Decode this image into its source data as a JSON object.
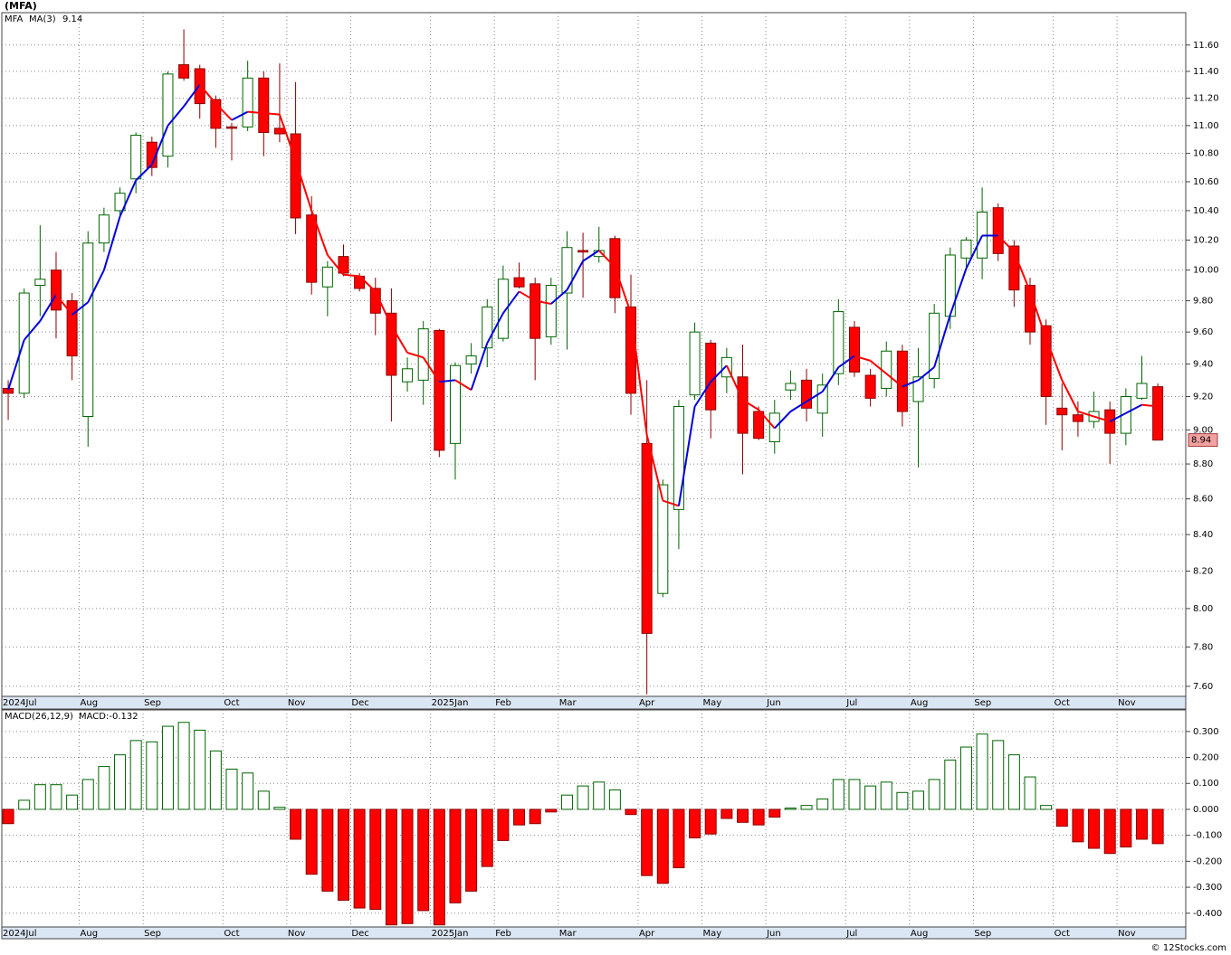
{
  "chart_data": [
    {
      "type": "candlestick",
      "title": "(MFA)",
      "symbol": "MFA",
      "symbol_color": "#008000",
      "up_color": "#006400",
      "down_color": "#ff0000",
      "log_scale": true,
      "grid": true,
      "open": [
        9.25,
        9.22,
        9.9,
        10.0,
        9.8,
        9.08,
        10.18,
        10.4,
        10.62,
        10.88,
        10.78,
        11.45,
        11.42,
        11.19,
        10.99,
        10.99,
        11.35,
        10.98,
        10.94,
        10.37,
        9.89,
        10.09,
        9.96,
        9.88,
        9.72,
        9.29,
        9.3,
        9.61,
        8.92,
        9.4,
        9.5,
        9.56,
        9.95,
        9.91,
        9.57,
        9.85,
        10.13,
        10.09,
        10.21,
        9.76,
        8.92,
        8.08,
        8.54,
        9.21,
        9.53,
        9.32,
        9.32,
        9.11,
        8.93,
        9.24,
        9.3,
        9.1,
        9.34,
        9.63,
        9.33,
        9.25,
        9.48,
        9.17,
        9.31,
        9.7,
        10.08,
        10.08,
        10.42,
        10.16,
        9.9,
        9.64,
        9.13,
        9.09,
        9.05,
        9.12,
        8.98,
        9.19,
        9.26
      ],
      "high": [
        9.3,
        9.88,
        10.3,
        10.12,
        9.85,
        10.26,
        10.42,
        10.56,
        10.95,
        10.92,
        11.4,
        11.72,
        11.45,
        11.22,
        11.02,
        11.48,
        11.4,
        11.46,
        11.32,
        10.5,
        10.06,
        10.17,
        9.98,
        9.95,
        9.88,
        9.44,
        9.67,
        9.62,
        9.41,
        9.53,
        9.81,
        10.03,
        10.05,
        9.95,
        9.95,
        10.26,
        10.25,
        10.29,
        10.23,
        9.97,
        9.3,
        8.71,
        9.18,
        9.66,
        9.55,
        9.5,
        9.52,
        9.14,
        9.18,
        9.36,
        9.37,
        9.34,
        9.81,
        9.67,
        9.37,
        9.54,
        9.52,
        9.5,
        9.78,
        10.15,
        10.22,
        10.56,
        10.45,
        10.2,
        9.95,
        9.68,
        9.28,
        9.17,
        9.23,
        9.17,
        9.25,
        9.45,
        9.28
      ],
      "low": [
        9.06,
        9.19,
        9.7,
        9.56,
        9.3,
        8.9,
        10.12,
        10.35,
        10.52,
        10.64,
        10.7,
        11.33,
        11.05,
        10.84,
        10.75,
        10.96,
        10.78,
        10.88,
        10.24,
        9.84,
        9.7,
        9.96,
        9.86,
        9.58,
        9.05,
        9.23,
        9.15,
        8.84,
        8.71,
        9.34,
        9.38,
        9.54,
        9.88,
        9.3,
        9.52,
        9.49,
        9.82,
        10.05,
        9.72,
        9.09,
        7.56,
        8.06,
        8.32,
        9.18,
        8.95,
        9.22,
        8.74,
        8.94,
        8.86,
        9.18,
        9.05,
        8.96,
        9.27,
        9.32,
        9.14,
        9.2,
        9.02,
        8.78,
        9.25,
        9.62,
        10.0,
        9.94,
        10.06,
        9.76,
        9.52,
        9.03,
        8.88,
        8.96,
        9.01,
        8.8,
        8.91,
        9.18,
        8.94
      ],
      "close": [
        9.22,
        9.85,
        9.94,
        9.74,
        9.45,
        10.18,
        10.37,
        10.52,
        10.93,
        10.7,
        11.38,
        11.35,
        11.16,
        10.98,
        10.98,
        11.35,
        10.95,
        10.94,
        10.35,
        9.92,
        10.02,
        9.98,
        9.88,
        9.72,
        9.33,
        9.37,
        9.62,
        8.88,
        9.39,
        9.45,
        9.76,
        9.94,
        9.89,
        9.56,
        9.9,
        10.15,
        10.12,
        10.13,
        9.82,
        9.22,
        7.87,
        8.68,
        9.14,
        9.6,
        9.12,
        9.44,
        8.98,
        8.95,
        9.1,
        9.28,
        9.13,
        9.27,
        9.73,
        9.35,
        9.19,
        9.48,
        9.11,
        9.32,
        9.72,
        10.1,
        10.2,
        10.39,
        10.11,
        9.87,
        9.6,
        9.2,
        9.09,
        9.05,
        9.11,
        8.98,
        9.2,
        9.28,
        8.94
      ],
      "ma": {
        "name": "MA(3)",
        "up_color": "#0000dd",
        "down_color": "#ff0000",
        "values": [
          9.24,
          9.55,
          9.67,
          9.84,
          9.71,
          9.79,
          10.0,
          10.36,
          10.61,
          10.72,
          11.0,
          11.14,
          11.3,
          11.16,
          11.04,
          11.1,
          11.09,
          11.08,
          10.75,
          10.4,
          10.1,
          9.97,
          9.96,
          9.86,
          9.64,
          9.47,
          9.44,
          9.29,
          9.3,
          9.24,
          9.53,
          9.72,
          9.86,
          9.8,
          9.78,
          9.87,
          10.06,
          10.13,
          10.02,
          9.72,
          8.97,
          8.59,
          8.56,
          9.14,
          9.29,
          9.39,
          9.18,
          9.12,
          9.01,
          9.11,
          9.17,
          9.23,
          9.38,
          9.45,
          9.42,
          9.34,
          9.26,
          9.3,
          9.38,
          9.71,
          10.01,
          10.23,
          10.23,
          10.12,
          9.86,
          9.56,
          9.3,
          9.11,
          9.08,
          9.05,
          9.1,
          9.15,
          9.14
        ]
      },
      "ylim": [
        7.55,
        11.85
      ],
      "yticks": [
        {
          "value": 7.6,
          "label": "7.60"
        },
        {
          "value": 7.8,
          "label": "7.80"
        },
        {
          "value": 8.0,
          "label": "8.00"
        },
        {
          "value": 8.2,
          "label": "8.20"
        },
        {
          "value": 8.4,
          "label": "8.40"
        },
        {
          "value": 8.6,
          "label": "8.60"
        },
        {
          "value": 8.8,
          "label": "8.80"
        },
        {
          "value": 9.0,
          "label": "9.00"
        },
        {
          "value": 9.2,
          "label": "9.20"
        },
        {
          "value": 9.4,
          "label": "9.40"
        },
        {
          "value": 9.6,
          "label": "9.60"
        },
        {
          "value": 9.8,
          "label": "9.80"
        },
        {
          "value": 10.0,
          "label": "10.00"
        },
        {
          "value": 10.2,
          "label": "10.20"
        },
        {
          "value": 10.4,
          "label": "10.40"
        },
        {
          "value": 10.6,
          "label": "10.60"
        },
        {
          "value": 10.8,
          "label": "10.80"
        },
        {
          "value": 11.0,
          "label": "11.00"
        },
        {
          "value": 11.2,
          "label": "11.20"
        },
        {
          "value": 11.4,
          "label": "11.40"
        },
        {
          "value": 11.6,
          "label": "11.60"
        }
      ],
      "xlim": [
        -0.4,
        73.75
      ],
      "xticks": [
        {
          "value": -0.4,
          "label": "2024Jul"
        },
        {
          "value": 4.45,
          "label": "Aug"
        },
        {
          "value": 8.45,
          "label": "Sep"
        },
        {
          "value": 13.45,
          "label": "Oct"
        },
        {
          "value": 17.45,
          "label": "Nov"
        },
        {
          "value": 21.45,
          "label": "Dec"
        },
        {
          "value": 26.45,
          "label": "2025Jan"
        },
        {
          "value": 30.45,
          "label": "Feb"
        },
        {
          "value": 34.45,
          "label": "Mar"
        },
        {
          "value": 39.45,
          "label": "Apr"
        },
        {
          "value": 43.45,
          "label": "May"
        },
        {
          "value": 47.45,
          "label": "Jun"
        },
        {
          "value": 52.45,
          "label": "Jul"
        },
        {
          "value": 56.45,
          "label": "Aug"
        },
        {
          "value": 60.45,
          "label": "Sep"
        },
        {
          "value": 65.45,
          "label": "Oct"
        },
        {
          "value": 69.45,
          "label": "Nov"
        }
      ]
    },
    {
      "type": "histogram_bar",
      "title": "MACD(26,12,9)",
      "value_prefix": "MACD:",
      "up_color": "#006400",
      "down_color": "#ff0000",
      "grid": true,
      "values": [
        -0.055,
        0.035,
        0.095,
        0.095,
        0.055,
        0.115,
        0.165,
        0.21,
        0.265,
        0.26,
        0.32,
        0.335,
        0.305,
        0.225,
        0.155,
        0.14,
        0.07,
        0.008,
        -0.115,
        -0.25,
        -0.315,
        -0.35,
        -0.38,
        -0.385,
        -0.445,
        -0.44,
        -0.39,
        -0.445,
        -0.36,
        -0.315,
        -0.22,
        -0.12,
        -0.06,
        -0.055,
        -0.01,
        0.055,
        0.09,
        0.105,
        0.075,
        -0.02,
        -0.255,
        -0.285,
        -0.225,
        -0.11,
        -0.095,
        -0.035,
        -0.05,
        -0.06,
        -0.03,
        0.005,
        0.015,
        0.04,
        0.115,
        0.115,
        0.09,
        0.105,
        0.065,
        0.07,
        0.115,
        0.19,
        0.24,
        0.29,
        0.265,
        0.21,
        0.125,
        0.015,
        -0.065,
        -0.125,
        -0.15,
        -0.17,
        -0.145,
        -0.115,
        -0.132
      ],
      "ylim": [
        -0.453,
        0.383
      ],
      "yticks": [
        {
          "value": -0.4,
          "label": "-0.400"
        },
        {
          "value": -0.3,
          "label": "-0.300"
        },
        {
          "value": -0.2,
          "label": "-0.200"
        },
        {
          "value": -0.1,
          "label": "-0.100"
        },
        {
          "value": 0,
          "label": "0.000"
        },
        {
          "value": 0.1,
          "label": "0.100"
        },
        {
          "value": 0.2,
          "label": "0.200"
        },
        {
          "value": 0.3,
          "label": "0.300"
        }
      ]
    }
  ],
  "footer": "© 12Stocks.com"
}
